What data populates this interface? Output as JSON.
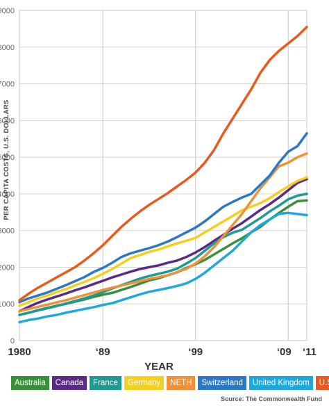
{
  "chart_data": {
    "type": "line",
    "xlabel": "YEAR",
    "ylabel": "PER CAPITA COSTS, U.S. DOLLARS",
    "ylim": [
      0,
      9000
    ],
    "xlim": [
      1980,
      2011
    ],
    "y_ticks": [
      0,
      1000,
      2000,
      3000,
      4000,
      5000,
      6000,
      7000,
      8000,
      9000
    ],
    "y_tick_labels": [
      "0",
      "1000",
      "2000",
      "3000",
      "4000",
      "5000",
      "6000",
      "7000",
      "8000",
      "9000"
    ],
    "x_ticks": [
      1980,
      1989,
      1999,
      2009,
      2011
    ],
    "x_tick_labels": [
      "1980",
      "‘89",
      "‘99",
      "‘09",
      "‘11"
    ],
    "grid": true,
    "legend_position": "bottom",
    "source": "Source: The Commonwealth Fund",
    "x": [
      1980,
      1981,
      1982,
      1983,
      1984,
      1985,
      1986,
      1987,
      1988,
      1989,
      1990,
      1991,
      1992,
      1993,
      1994,
      1995,
      1996,
      1997,
      1998,
      1999,
      2000,
      2001,
      2002,
      2003,
      2004,
      2005,
      2006,
      2007,
      2008,
      2009,
      2010,
      2011
    ],
    "series": [
      {
        "name": "Australia",
        "color": "#3a8f3a",
        "values": [
          700,
          760,
          830,
          890,
          950,
          1000,
          1060,
          1120,
          1190,
          1250,
          1300,
          1380,
          1460,
          1550,
          1640,
          1700,
          1780,
          1860,
          1980,
          2080,
          2200,
          2350,
          2500,
          2650,
          2790,
          2950,
          3100,
          3300,
          3480,
          3650,
          3800,
          3820
        ]
      },
      {
        "name": "Canada",
        "color": "#5b2a86",
        "values": [
          800,
          920,
          1030,
          1120,
          1200,
          1280,
          1370,
          1450,
          1540,
          1630,
          1720,
          1800,
          1880,
          1950,
          2000,
          2050,
          2120,
          2180,
          2280,
          2400,
          2550,
          2720,
          2880,
          3050,
          3200,
          3380,
          3560,
          3720,
          3900,
          4100,
          4300,
          4400
        ]
      },
      {
        "name": "France",
        "color": "#1f9a93",
        "values": [
          700,
          760,
          820,
          880,
          940,
          1010,
          1080,
          1150,
          1230,
          1320,
          1420,
          1510,
          1600,
          1690,
          1760,
          1820,
          1880,
          1960,
          2100,
          2250,
          2450,
          2650,
          2820,
          2940,
          3020,
          3180,
          3340,
          3520,
          3680,
          3850,
          3950,
          4000
        ]
      },
      {
        "name": "Germany",
        "color": "#f4cf1f",
        "values": [
          950,
          1050,
          1150,
          1230,
          1320,
          1400,
          1500,
          1600,
          1700,
          1820,
          1950,
          2100,
          2250,
          2330,
          2420,
          2480,
          2570,
          2650,
          2720,
          2800,
          2950,
          3100,
          3250,
          3400,
          3550,
          3650,
          3750,
          3880,
          4050,
          4200,
          4350,
          4450
        ]
      },
      {
        "name": "NETH",
        "color": "#f0913a",
        "values": [
          800,
          860,
          920,
          980,
          1040,
          1100,
          1170,
          1240,
          1310,
          1380,
          1440,
          1500,
          1560,
          1620,
          1680,
          1730,
          1780,
          1860,
          1960,
          2100,
          2300,
          2550,
          2850,
          3150,
          3450,
          3800,
          4150,
          4450,
          4750,
          4850,
          5000,
          5100
        ]
      },
      {
        "name": "Switzerland",
        "color": "#2c78c6",
        "values": [
          1050,
          1150,
          1230,
          1310,
          1410,
          1510,
          1620,
          1730,
          1870,
          1980,
          2120,
          2280,
          2380,
          2450,
          2520,
          2600,
          2700,
          2820,
          2950,
          3080,
          3250,
          3450,
          3650,
          3780,
          3900,
          4000,
          4250,
          4500,
          4850,
          5150,
          5300,
          5650
        ]
      },
      {
        "name": "United Kingdom",
        "color": "#1ea8dc",
        "values": [
          500,
          560,
          600,
          660,
          700,
          760,
          810,
          860,
          910,
          970,
          1020,
          1100,
          1180,
          1260,
          1330,
          1380,
          1430,
          1490,
          1560,
          1680,
          1850,
          2050,
          2250,
          2450,
          2700,
          2950,
          3150,
          3300,
          3450,
          3480,
          3450,
          3420
        ]
      },
      {
        "name": "U.S.",
        "color": "#ea5a1f",
        "values": [
          1100,
          1280,
          1440,
          1580,
          1720,
          1860,
          2000,
          2180,
          2380,
          2600,
          2850,
          3100,
          3320,
          3520,
          3700,
          3860,
          4020,
          4200,
          4380,
          4580,
          4850,
          5200,
          5650,
          6050,
          6450,
          6850,
          7300,
          7650,
          7900,
          8100,
          8300,
          8550
        ]
      }
    ]
  }
}
